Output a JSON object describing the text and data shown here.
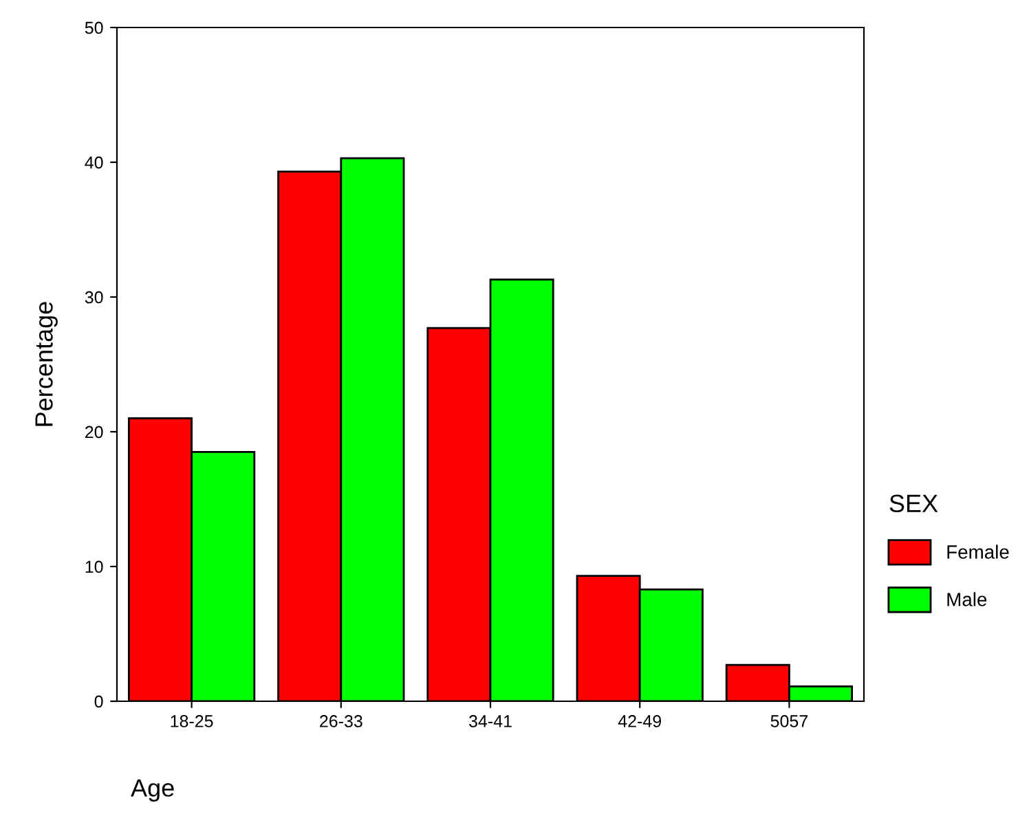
{
  "chart_data": {
    "type": "bar",
    "xlabel": "Age",
    "ylabel": "Percentage",
    "legend_title": "SEX",
    "categories": [
      "18-25",
      "26-33",
      "34-41",
      "42-49",
      "5057"
    ],
    "series": [
      {
        "name": "Female",
        "color": "#ff0000",
        "values": [
          21.0,
          39.3,
          27.7,
          9.3,
          2.7
        ]
      },
      {
        "name": "Male",
        "color": "#00ff00",
        "values": [
          18.5,
          40.3,
          31.3,
          8.3,
          1.1
        ]
      }
    ],
    "ylim": [
      0,
      50
    ],
    "yticks": [
      0,
      10,
      20,
      30,
      40,
      50
    ],
    "grid": false,
    "legend": "right"
  }
}
